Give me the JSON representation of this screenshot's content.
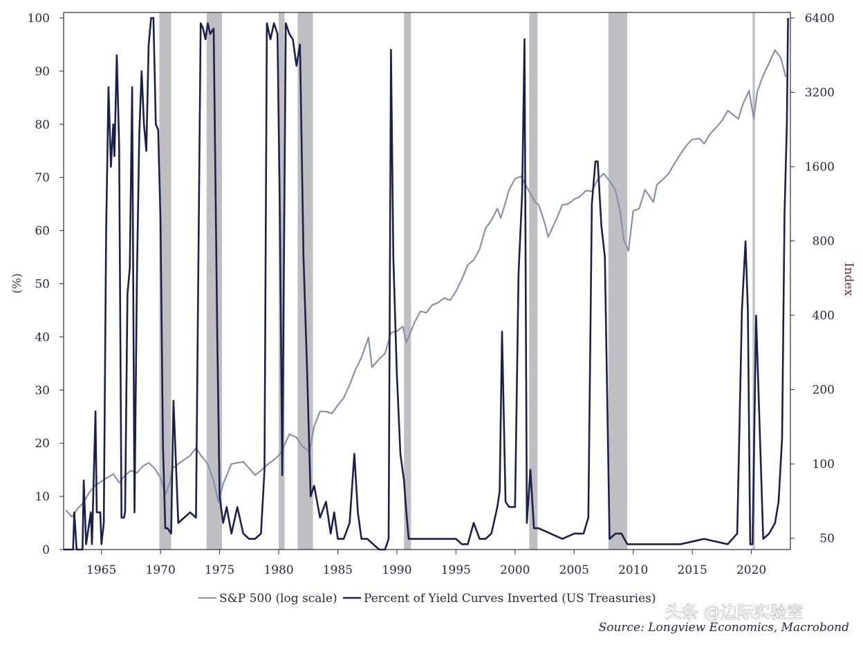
{
  "chart_data": {
    "type": "line",
    "left_axis": {
      "title": "(%)",
      "range": [
        0,
        100
      ],
      "ticks": [
        "0",
        "10",
        "20",
        "30",
        "40",
        "50",
        "60",
        "70",
        "80",
        "90",
        "100"
      ]
    },
    "right_axis": {
      "title": "Index",
      "scale": "log",
      "range": [
        45,
        6400
      ],
      "ticks": [
        "50",
        "100",
        "200",
        "400",
        "800",
        "1600",
        "3200",
        "6400"
      ]
    },
    "x_axis": {
      "range": [
        1961.8,
        2023.3
      ],
      "ticks": [
        "1965",
        "1970",
        "1975",
        "1980",
        "1985",
        "1990",
        "1995",
        "2000",
        "2005",
        "2010",
        "2015",
        "2020"
      ]
    },
    "recessions": [
      [
        1969.9,
        1970.9
      ],
      [
        1973.9,
        1975.2
      ],
      [
        1980.0,
        1980.5
      ],
      [
        1981.6,
        1982.9
      ],
      [
        1990.6,
        1991.2
      ],
      [
        2001.2,
        2001.9
      ],
      [
        2007.9,
        2009.5
      ],
      [
        2020.1,
        2020.3
      ]
    ],
    "series": [
      {
        "name": "S&P 500 (log scale)",
        "axis": "right",
        "color": "#8a8fa8",
        "x": [
          1962.0,
          1962.5,
          1963.0,
          1963.5,
          1964.0,
          1964.5,
          1965.0,
          1965.5,
          1966.0,
          1966.5,
          1967.0,
          1967.5,
          1968.0,
          1968.5,
          1969.0,
          1969.5,
          1970.0,
          1970.4,
          1970.8,
          1971.0,
          1971.5,
          1972.0,
          1972.5,
          1973.0,
          1973.5,
          1974.0,
          1974.5,
          1974.9,
          1975.3,
          1976.0,
          1976.5,
          1977.0,
          1977.5,
          1978.0,
          1978.5,
          1979.0,
          1979.5,
          1980.0,
          1980.3,
          1980.9,
          1981.5,
          1982.0,
          1982.6,
          1983.0,
          1983.5,
          1984.0,
          1984.5,
          1985.0,
          1985.5,
          1986.0,
          1986.5,
          1987.0,
          1987.6,
          1987.9,
          1988.5,
          1989.0,
          1989.5,
          1990.0,
          1990.5,
          1990.8,
          1991.5,
          1992.0,
          1992.5,
          1993.0,
          1993.5,
          1994.0,
          1994.5,
          1995.0,
          1995.5,
          1996.0,
          1996.5,
          1997.0,
          1997.5,
          1998.0,
          1998.5,
          1998.8,
          1999.5,
          2000.0,
          2000.5,
          2001.0,
          2001.7,
          2002.0,
          2002.5,
          2002.8,
          2003.5,
          2004.0,
          2004.5,
          2005.0,
          2005.5,
          2006.0,
          2006.5,
          2007.0,
          2007.5,
          2008.0,
          2008.5,
          2008.9,
          2009.2,
          2009.6,
          2010.0,
          2010.5,
          2011.0,
          2011.7,
          2012.0,
          2012.5,
          2013.0,
          2013.5,
          2014.0,
          2014.5,
          2015.0,
          2015.6,
          2016.0,
          2016.5,
          2017.0,
          2017.5,
          2018.0,
          2018.9,
          2019.3,
          2019.8,
          2020.2,
          2020.5,
          2021.0,
          2021.5,
          2022.0,
          2022.5,
          2022.9
        ],
        "y": [
          65,
          61,
          66,
          70,
          77,
          82,
          85,
          88,
          91,
          84,
          90,
          94,
          92,
          98,
          101,
          96,
          88,
          75,
          84,
          96,
          100,
          104,
          108,
          116,
          107,
          100,
          85,
          70,
          83,
          100,
          101,
          102,
          96,
          90,
          94,
          99,
          103,
          108,
          114,
          132,
          128,
          118,
          112,
          142,
          163,
          163,
          160,
          173,
          185,
          209,
          241,
          270,
          325,
          246,
          266,
          280,
          340,
          345,
          360,
          310,
          375,
          415,
          410,
          440,
          450,
          470,
          460,
          500,
          560,
          640,
          670,
          740,
          900,
          970,
          1080,
          990,
          1290,
          1430,
          1460,
          1320,
          1150,
          1120,
          950,
          830,
          980,
          1120,
          1130,
          1180,
          1210,
          1280,
          1270,
          1420,
          1500,
          1400,
          1280,
          1050,
          810,
          730,
          1060,
          1080,
          1290,
          1150,
          1350,
          1420,
          1500,
          1650,
          1800,
          1950,
          2060,
          2080,
          1980,
          2170,
          2300,
          2450,
          2700,
          2500,
          2880,
          3250,
          2500,
          3220,
          3750,
          4200,
          4750,
          4400,
          3700
        ]
      },
      {
        "name": "Percent of Yield Curves Inverted (US Treasuries)",
        "axis": "left",
        "color": "#1c1f4a",
        "x": [
          1961.8,
          1962.6,
          1962.7,
          1962.9,
          1963.0,
          1963.4,
          1963.5,
          1963.7,
          1964.1,
          1964.2,
          1964.5,
          1964.6,
          1964.9,
          1965.0,
          1965.2,
          1965.4,
          1965.6,
          1965.8,
          1966.0,
          1966.1,
          1966.3,
          1966.5,
          1966.7,
          1966.9,
          1967.0,
          1967.2,
          1967.4,
          1967.6,
          1967.8,
          1968.0,
          1968.2,
          1968.4,
          1968.6,
          1968.8,
          1969.0,
          1969.2,
          1969.4,
          1969.6,
          1969.8,
          1970.0,
          1970.2,
          1970.4,
          1970.6,
          1970.9,
          1971.1,
          1971.5,
          1972.0,
          1972.5,
          1973.0,
          1973.4,
          1973.6,
          1973.8,
          1974.0,
          1974.2,
          1974.5,
          1974.8,
          1975.0,
          1975.3,
          1975.6,
          1976.0,
          1976.5,
          1977.0,
          1977.5,
          1978.0,
          1978.5,
          1978.8,
          1979.0,
          1979.3,
          1979.6,
          1979.9,
          1980.1,
          1980.3,
          1980.6,
          1980.9,
          1981.2,
          1981.5,
          1981.8,
          1982.1,
          1982.4,
          1982.7,
          1983.0,
          1983.5,
          1984.0,
          1984.4,
          1984.7,
          1985.0,
          1985.5,
          1986.0,
          1986.4,
          1986.7,
          1987.0,
          1987.5,
          1988.0,
          1988.5,
          1989.0,
          1989.3,
          1989.5,
          1989.7,
          1990.0,
          1990.3,
          1990.6,
          1990.8,
          1991.0,
          1992.0,
          1993.0,
          1994.0,
          1995.0,
          1995.5,
          1996.0,
          1996.5,
          1997.0,
          1997.5,
          1998.0,
          1998.5,
          1998.7,
          1998.9,
          1999.2,
          1999.5,
          2000.0,
          2000.3,
          2000.6,
          2000.8,
          2001.0,
          2001.3,
          2001.6,
          2002.0,
          2003.0,
          2004.0,
          2005.0,
          2005.8,
          2006.2,
          2006.5,
          2006.8,
          2007.0,
          2007.3,
          2007.6,
          2008.0,
          2008.5,
          2009.0,
          2009.5,
          2010.0,
          2012.0,
          2014.0,
          2016.0,
          2018.0,
          2018.8,
          2019.2,
          2019.5,
          2019.7,
          2019.9,
          2020.1,
          2020.4,
          2021.0,
          2021.5,
          2022.0,
          2022.3,
          2022.6,
          2022.8,
          2023.0,
          2023.1
        ],
        "y": [
          0,
          0,
          7,
          0,
          0,
          0,
          13,
          1,
          7,
          1,
          26,
          7,
          7,
          1,
          5,
          60,
          87,
          72,
          80,
          74,
          93,
          76,
          6,
          6,
          7,
          48,
          53,
          87,
          7,
          51,
          78,
          90,
          80,
          75,
          95,
          100,
          100,
          80,
          79,
          62,
          20,
          4,
          4,
          3,
          28,
          5,
          6,
          7,
          6,
          99,
          98,
          96,
          99,
          97,
          98,
          40,
          10,
          5,
          8,
          3,
          8,
          3,
          2,
          2,
          3,
          15,
          99,
          96,
          99,
          97,
          63,
          14,
          99,
          97,
          96,
          91,
          95,
          55,
          34,
          10,
          12,
          6,
          9,
          3,
          7,
          2,
          2,
          5,
          18,
          7,
          2,
          2,
          1,
          0,
          0,
          2,
          94,
          55,
          33,
          18,
          13,
          7,
          2,
          2,
          2,
          2,
          2,
          1,
          1,
          5,
          2,
          2,
          3,
          8,
          11,
          41,
          9,
          8,
          8,
          52,
          67,
          96,
          5,
          15,
          4,
          4,
          3,
          2,
          3,
          3,
          6,
          65,
          73,
          73,
          61,
          55,
          2,
          3,
          3,
          1,
          1,
          1,
          1,
          2,
          1,
          3,
          45,
          58,
          45,
          1,
          1,
          44,
          2,
          3,
          5,
          9,
          21,
          63,
          80,
          100
        ]
      }
    ],
    "legend": {
      "placement": "bottom-center"
    }
  },
  "source": "Source: Longview Economics, Macrobond",
  "watermark": "头条 @边际实验室"
}
